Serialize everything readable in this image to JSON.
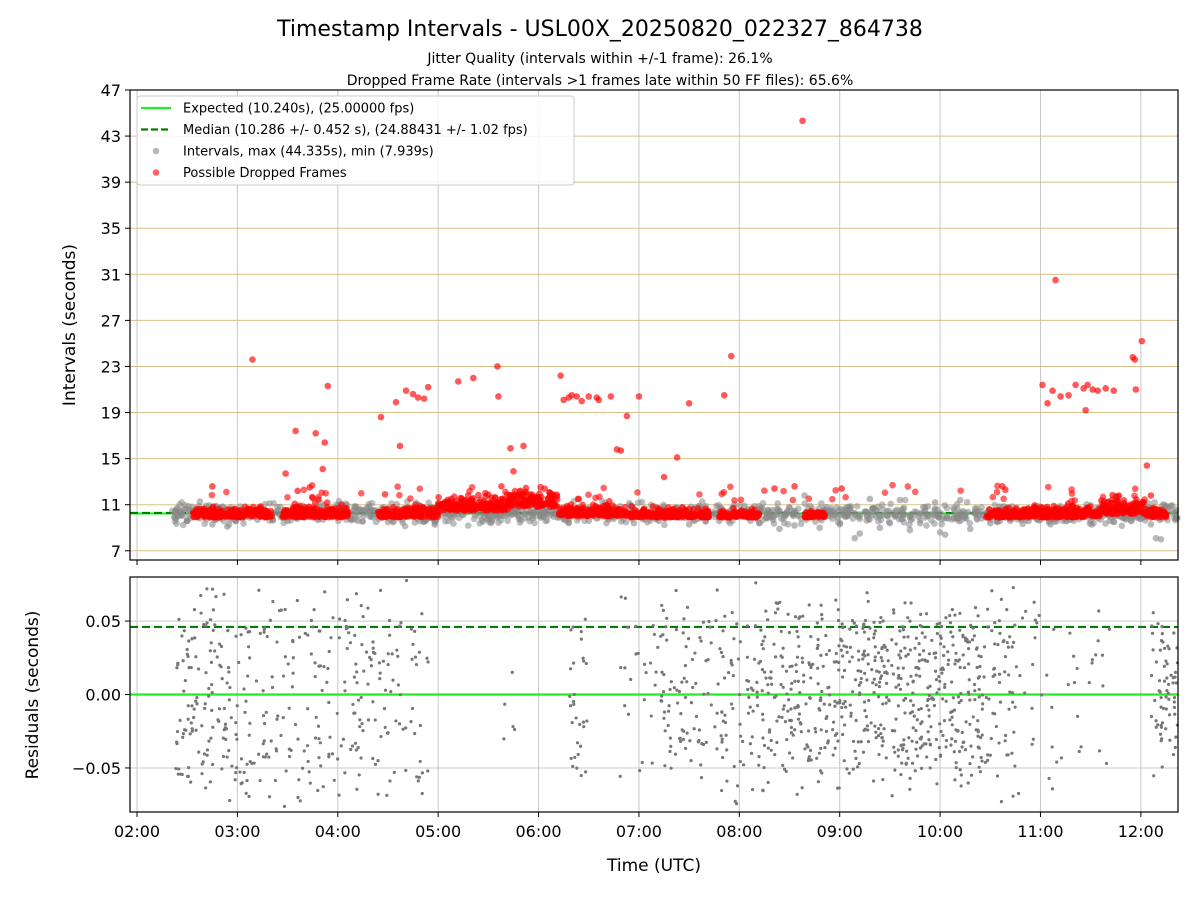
{
  "chart_data": [
    {
      "type": "scatter",
      "panel": "top",
      "title": "Timestamp Intervals - USL00X_20250820_022327_864738",
      "subtitle_lines": [
        "Jitter Quality (intervals within +/-1 frame): 26.1%",
        "Dropped Frame Rate (intervals >1 frames late within 50 FF files): 65.6%"
      ],
      "ylabel": "Intervals (seconds)",
      "xlim": [
        1.93,
        12.37
      ],
      "ylim": [
        6.2,
        47
      ],
      "yticks": [
        7,
        11,
        15,
        19,
        23,
        27,
        31,
        35,
        39,
        43,
        47
      ],
      "ytick_labels": [
        "7",
        "11",
        "15",
        "19",
        "23",
        "27",
        "31",
        "35",
        "39",
        "43",
        "47"
      ],
      "grid": "on",
      "hlines": [
        {
          "name": "Expected (10.240s), (25.00000 fps)",
          "y": 10.24,
          "color": "#22ee22",
          "style": "solid"
        },
        {
          "name": "Median (10.286 +/- 0.452 s), (24.88431 +/- 1.02 fps)",
          "y": 10.286,
          "color": "#008000",
          "style": "dashed"
        }
      ],
      "series": [
        {
          "name": "Intervals, max (44.335s), min (7.939s)",
          "color": "#888888",
          "points": [
            [
              2.4,
              10.7
            ],
            [
              2.5,
              9.6
            ],
            [
              2.6,
              9.9
            ],
            [
              2.75,
              9.3
            ],
            [
              2.9,
              9.1
            ],
            [
              3.05,
              9.8
            ],
            [
              3.2,
              9.7
            ],
            [
              3.4,
              10.8
            ],
            [
              3.5,
              9.6
            ],
            [
              3.65,
              10.9
            ],
            [
              3.8,
              9.7
            ],
            [
              4.05,
              10.9
            ],
            [
              4.2,
              9.6
            ],
            [
              4.35,
              9.9
            ],
            [
              4.5,
              9.5
            ],
            [
              4.75,
              10.7
            ],
            [
              4.9,
              9.8
            ],
            [
              5.05,
              10.8
            ],
            [
              5.3,
              10.7
            ],
            [
              6.05,
              10.8
            ],
            [
              6.3,
              9.4
            ],
            [
              6.5,
              9.6
            ],
            [
              6.7,
              9.7
            ],
            [
              6.95,
              9.4
            ],
            [
              7.2,
              9.6
            ],
            [
              7.5,
              9.3
            ],
            [
              7.6,
              10.9
            ],
            [
              7.8,
              9.6
            ],
            [
              8.05,
              10.9
            ],
            [
              8.2,
              9.4
            ],
            [
              8.4,
              8.9
            ],
            [
              8.55,
              9.2
            ],
            [
              8.65,
              11.8
            ],
            [
              8.8,
              9.0
            ],
            [
              9.0,
              9.3
            ],
            [
              9.15,
              8.1
            ],
            [
              9.2,
              8.5
            ],
            [
              9.3,
              11.5
            ],
            [
              9.4,
              9.0
            ],
            [
              9.5,
              9.4
            ],
            [
              9.6,
              11.4
            ],
            [
              9.7,
              8.8
            ],
            [
              9.8,
              9.4
            ],
            [
              9.95,
              11.2
            ],
            [
              10.0,
              8.6
            ],
            [
              10.05,
              8.4
            ],
            [
              10.2,
              11.4
            ],
            [
              10.3,
              8.9
            ],
            [
              10.5,
              9.4
            ],
            [
              10.7,
              9.6
            ],
            [
              10.9,
              9.9
            ],
            [
              11.1,
              9.3
            ],
            [
              11.3,
              9.7
            ],
            [
              11.5,
              9.6
            ],
            [
              11.7,
              9.9
            ],
            [
              11.9,
              10.8
            ],
            [
              12.0,
              9.8
            ],
            [
              12.1,
              9.3
            ],
            [
              12.15,
              8.1
            ],
            [
              12.2,
              8.0
            ],
            [
              12.3,
              10.9
            ],
            [
              12.35,
              9.8
            ]
          ]
        },
        {
          "name": "Possible Dropped Frames",
          "color": "#ff0000",
          "points": [
            [
              3.15,
              23.6
            ],
            [
              3.48,
              13.7
            ],
            [
              3.58,
              17.4
            ],
            [
              3.6,
              12.2
            ],
            [
              3.72,
              12.5
            ],
            [
              3.75,
              11.6
            ],
            [
              3.78,
              17.2
            ],
            [
              3.85,
              14.1
            ],
            [
              3.87,
              16.4
            ],
            [
              3.9,
              21.3
            ],
            [
              4.43,
              18.6
            ],
            [
              4.47,
              11.9
            ],
            [
              4.58,
              19.9
            ],
            [
              4.62,
              16.1
            ],
            [
              4.68,
              20.9
            ],
            [
              4.75,
              20.6
            ],
            [
              4.8,
              20.3
            ],
            [
              4.86,
              20.2
            ],
            [
              4.9,
              21.2
            ],
            [
              5.2,
              21.7
            ],
            [
              5.35,
              22.0
            ],
            [
              5.59,
              23.0
            ],
            [
              5.6,
              20.4
            ],
            [
              5.63,
              12.6
            ],
            [
              5.72,
              15.9
            ],
            [
              5.75,
              13.9
            ],
            [
              5.85,
              16.1
            ],
            [
              6.22,
              22.2
            ],
            [
              6.25,
              20.1
            ],
            [
              6.3,
              20.3
            ],
            [
              6.33,
              20.5
            ],
            [
              6.38,
              20.4
            ],
            [
              6.43,
              20.0
            ],
            [
              6.5,
              20.4
            ],
            [
              6.58,
              20.3
            ],
            [
              6.6,
              20.1
            ],
            [
              6.72,
              20.4
            ],
            [
              6.78,
              15.8
            ],
            [
              6.82,
              15.7
            ],
            [
              6.88,
              18.7
            ],
            [
              7.0,
              20.4
            ],
            [
              7.25,
              13.4
            ],
            [
              7.38,
              15.1
            ],
            [
              7.5,
              19.8
            ],
            [
              7.85,
              20.5
            ],
            [
              7.92,
              23.9
            ],
            [
              8.63,
              44.33
            ],
            [
              8.35,
              12.4
            ],
            [
              8.55,
              12.6
            ],
            [
              9.02,
              12.4
            ],
            [
              11.02,
              21.4
            ],
            [
              11.07,
              19.8
            ],
            [
              11.12,
              20.9
            ],
            [
              11.2,
              20.4
            ],
            [
              11.28,
              20.5
            ],
            [
              11.35,
              21.4
            ],
            [
              11.15,
              30.5
            ],
            [
              11.43,
              21.1
            ],
            [
              11.47,
              21.4
            ],
            [
              11.52,
              21.0
            ],
            [
              11.57,
              20.9
            ],
            [
              11.65,
              21.1
            ],
            [
              11.73,
              20.9
            ],
            [
              11.45,
              19.2
            ],
            [
              11.95,
              21.0
            ],
            [
              11.92,
              23.8
            ],
            [
              11.94,
              23.6
            ],
            [
              12.01,
              25.2
            ],
            [
              12.06,
              14.4
            ],
            [
              12.1,
              11.8
            ],
            [
              10.62,
              12.6
            ],
            [
              10.65,
              12.3
            ],
            [
              11.77,
              11.7
            ],
            [
              2.75,
              12.6
            ]
          ],
          "dense_bands": [
            {
              "x": [
                2.55,
                3.35
              ],
              "y": [
                9.9,
                11.0
              ]
            },
            {
              "x": [
                3.45,
                4.1
              ],
              "y": [
                9.9,
                11.2
              ]
            },
            {
              "x": [
                4.4,
                4.55
              ],
              "y": [
                9.9,
                10.8
              ]
            },
            {
              "x": [
                4.55,
                5.0
              ],
              "y": [
                9.9,
                11.3
              ]
            },
            {
              "x": [
                5.0,
                5.7
              ],
              "y": [
                10.5,
                12.2
              ]
            },
            {
              "x": [
                5.7,
                6.2
              ],
              "y": [
                10.8,
                12.6
              ]
            },
            {
              "x": [
                6.2,
                6.9
              ],
              "y": [
                10.0,
                11.3
              ]
            },
            {
              "x": [
                6.9,
                7.2
              ],
              "y": [
                9.9,
                11.1
              ]
            },
            {
              "x": [
                7.2,
                7.7
              ],
              "y": [
                9.9,
                10.9
              ]
            },
            {
              "x": [
                7.8,
                8.2
              ],
              "y": [
                9.9,
                10.7
              ]
            },
            {
              "x": [
                8.65,
                8.85
              ],
              "y": [
                9.9,
                10.6
              ]
            },
            {
              "x": [
                10.45,
                10.8
              ],
              "y": [
                9.9,
                10.9
              ]
            },
            {
              "x": [
                10.8,
                11.6
              ],
              "y": [
                9.9,
                11.2
              ]
            },
            {
              "x": [
                11.6,
                12.05
              ],
              "y": [
                10.2,
                12.1
              ]
            },
            {
              "x": [
                12.05,
                12.25
              ],
              "y": [
                9.9,
                10.9
              ]
            }
          ]
        }
      ],
      "legend": {
        "placement": "top-left",
        "entries": [
          {
            "label": "Expected (10.240s), (25.00000 fps)",
            "color": "#22ee22",
            "marker": "line-solid"
          },
          {
            "label": "Median (10.286 +/- 0.452 s), (24.88431 +/- 1.02 fps)",
            "color": "#008000",
            "marker": "line-dashed"
          },
          {
            "label": "Intervals, max (44.335s), min (7.939s)",
            "color": "#888888",
            "marker": "circle"
          },
          {
            "label": "Possible Dropped Frames",
            "color": "#ff0000",
            "marker": "circle"
          }
        ]
      }
    },
    {
      "type": "scatter",
      "panel": "bottom",
      "xlabel": "Time (UTC)",
      "ylabel": "Residuals (seconds)",
      "xlim": [
        1.93,
        12.37
      ],
      "ylim": [
        -0.08,
        0.08
      ],
      "xticks": [
        2,
        3,
        4,
        5,
        6,
        7,
        8,
        9,
        10,
        11,
        12
      ],
      "xtick_labels": [
        "02:00",
        "03:00",
        "04:00",
        "05:00",
        "06:00",
        "07:00",
        "08:00",
        "09:00",
        "10:00",
        "11:00",
        "12:00"
      ],
      "yticks": [
        -0.05,
        0.0,
        0.05
      ],
      "ytick_labels": [
        "−0.05",
        "0.00",
        "0.05"
      ],
      "grid": "on",
      "hlines": [
        {
          "y": 0.0,
          "color": "#22ee22",
          "style": "solid"
        },
        {
          "y": 0.046,
          "color": "#008000",
          "style": "dashed"
        }
      ],
      "series": [
        {
          "name": "Residuals",
          "color": "#777777",
          "density_segments": [
            {
              "x": [
                2.38,
                3.15
              ],
              "count": 150,
              "spread": 0.08
            },
            {
              "x": [
                3.15,
                3.25
              ],
              "count": 6,
              "spread": 0.08
            },
            {
              "x": [
                3.25,
                3.85
              ],
              "count": 80,
              "spread": 0.08
            },
            {
              "x": [
                3.85,
                4.55
              ],
              "count": 95,
              "spread": 0.08
            },
            {
              "x": [
                4.55,
                4.95
              ],
              "count": 35,
              "spread": 0.08
            },
            {
              "x": [
                5.65,
                5.9
              ],
              "count": 5,
              "spread": 0.06
            },
            {
              "x": [
                6.3,
                6.5
              ],
              "count": 30,
              "spread": 0.08
            },
            {
              "x": [
                6.8,
                7.2
              ],
              "count": 25,
              "spread": 0.08
            },
            {
              "x": [
                7.2,
                8.0
              ],
              "count": 120,
              "spread": 0.08
            },
            {
              "x": [
                8.0,
                8.55
              ],
              "count": 110,
              "spread": 0.08
            },
            {
              "x": [
                8.55,
                9.4
              ],
              "count": 220,
              "spread": 0.07
            },
            {
              "x": [
                9.4,
                10.4
              ],
              "count": 300,
              "spread": 0.07
            },
            {
              "x": [
                10.4,
                10.8
              ],
              "count": 70,
              "spread": 0.08
            },
            {
              "x": [
                10.8,
                11.7
              ],
              "count": 40,
              "spread": 0.08
            },
            {
              "x": [
                12.1,
                12.37
              ],
              "count": 65,
              "spread": 0.06
            }
          ]
        }
      ]
    }
  ]
}
